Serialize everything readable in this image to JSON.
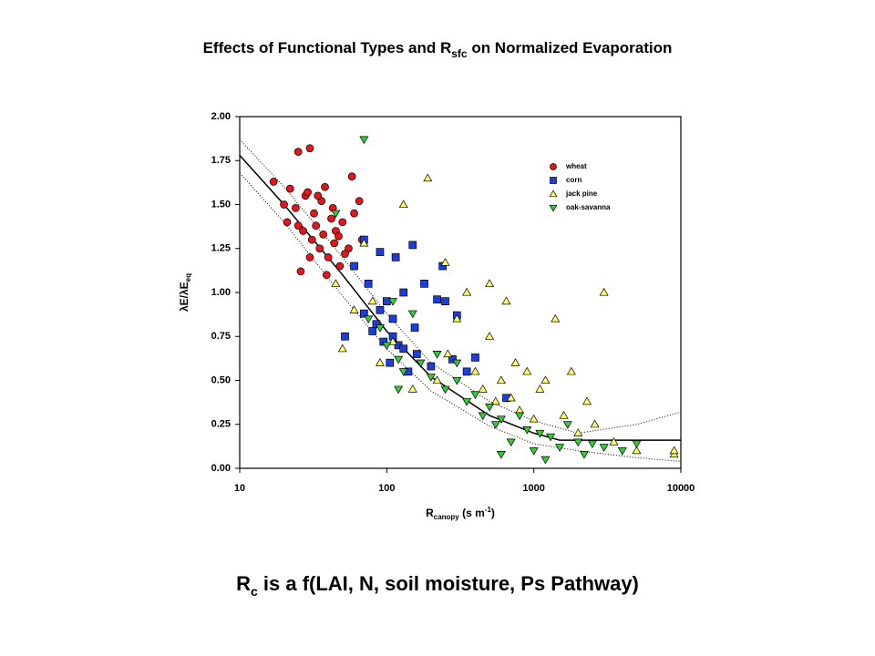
{
  "chart_data": {
    "type": "scatter",
    "title": [
      "Effects of Functional Types and R",
      "sfc",
      " on Normalized Evaporation"
    ],
    "ylabel": [
      "λE/λE",
      "eq"
    ],
    "xlabel": [
      "R",
      "canopy",
      " (s m",
      "-1",
      ")"
    ],
    "footer": [
      "R",
      "c",
      " is a f(LAI, N, soil moisture, Ps Pathway)"
    ],
    "xscale": "log",
    "xlim": [
      10,
      10000
    ],
    "ylim": [
      0,
      2
    ],
    "xticks": [
      10,
      100,
      1000,
      10000
    ],
    "yticks": [
      {
        "value": 0,
        "label": "0.00"
      },
      {
        "value": 0.25,
        "label": "0.25"
      },
      {
        "value": 0.5,
        "label": "0.50"
      },
      {
        "value": 0.75,
        "label": "0.75"
      },
      {
        "value": 1,
        "label": "1.00"
      },
      {
        "value": 1.25,
        "label": "1.25"
      },
      {
        "value": 1.5,
        "label": "1.50"
      },
      {
        "value": 1.75,
        "label": "1.75"
      },
      {
        "value": 2,
        "label": "2.00"
      }
    ],
    "grid": false,
    "legend": "upper right",
    "series": [
      {
        "name": "wheat",
        "color": "#e8141b",
        "marker": "circle",
        "x": [
          17,
          20,
          22,
          24,
          25,
          26,
          28,
          30,
          31,
          32,
          33,
          35,
          36,
          37,
          38,
          40,
          42,
          44,
          45,
          48,
          50,
          55,
          58,
          60,
          65,
          68,
          25,
          30,
          34,
          39,
          43,
          47,
          52,
          21,
          27,
          29
        ],
        "values": [
          1.63,
          1.5,
          1.59,
          1.48,
          1.8,
          1.12,
          1.55,
          1.82,
          1.3,
          1.45,
          1.38,
          1.25,
          1.52,
          1.33,
          1.6,
          1.2,
          1.42,
          1.28,
          1.35,
          1.15,
          1.4,
          1.25,
          1.66,
          1.45,
          1.52,
          1.3,
          1.38,
          1.2,
          1.55,
          1.1,
          1.48,
          1.32,
          1.22,
          1.4,
          1.35,
          1.57
        ]
      },
      {
        "name": "corn",
        "color": "#1d3ede",
        "marker": "square",
        "x": [
          52,
          60,
          70,
          75,
          80,
          85,
          90,
          95,
          100,
          105,
          110,
          115,
          120,
          130,
          140,
          150,
          155,
          160,
          180,
          200,
          220,
          240,
          250,
          280,
          300,
          350,
          400,
          650,
          70,
          90,
          110,
          130
        ],
        "values": [
          0.75,
          1.15,
          0.88,
          1.05,
          0.78,
          0.82,
          1.23,
          0.72,
          0.95,
          0.6,
          0.85,
          1.2,
          0.7,
          1.0,
          0.55,
          1.27,
          0.8,
          0.65,
          1.05,
          0.58,
          0.96,
          1.15,
          0.95,
          0.62,
          0.87,
          0.55,
          0.63,
          0.4,
          1.3,
          0.9,
          0.75,
          0.68
        ]
      },
      {
        "name": "jack pine",
        "color": "#ffff66",
        "marker": "triangle-up",
        "x": [
          45,
          50,
          60,
          70,
          80,
          90,
          110,
          130,
          150,
          190,
          220,
          260,
          300,
          350,
          400,
          450,
          500,
          550,
          600,
          650,
          700,
          750,
          800,
          900,
          1000,
          1100,
          1200,
          1400,
          1600,
          1800,
          2000,
          2300,
          2600,
          3000,
          3500,
          5000,
          9000,
          9000,
          250,
          500
        ],
        "values": [
          1.05,
          0.68,
          0.9,
          1.28,
          0.95,
          0.6,
          0.72,
          1.5,
          0.45,
          1.65,
          0.5,
          0.65,
          0.85,
          1.0,
          0.55,
          0.45,
          0.75,
          0.38,
          0.5,
          0.95,
          0.4,
          0.6,
          0.33,
          0.55,
          0.28,
          0.45,
          0.5,
          0.85,
          0.3,
          0.55,
          0.2,
          0.38,
          0.25,
          1.0,
          0.15,
          0.1,
          0.08,
          0.1,
          1.17,
          1.05
        ]
      },
      {
        "name": "oak-savanna",
        "color": "#33cc33",
        "marker": "triangle-down",
        "x": [
          45,
          70,
          75,
          90,
          100,
          110,
          120,
          130,
          150,
          170,
          200,
          220,
          250,
          300,
          350,
          400,
          450,
          500,
          550,
          600,
          700,
          800,
          900,
          1000,
          1100,
          1200,
          1300,
          1500,
          1700,
          2000,
          2200,
          2500,
          3000,
          4000,
          5000,
          120,
          300,
          600
        ],
        "values": [
          1.45,
          1.87,
          0.85,
          0.8,
          0.7,
          0.95,
          0.62,
          0.55,
          0.88,
          0.6,
          0.52,
          0.65,
          0.45,
          0.5,
          0.38,
          0.42,
          0.3,
          0.35,
          0.25,
          0.28,
          0.15,
          0.3,
          0.22,
          0.1,
          0.2,
          0.05,
          0.18,
          0.12,
          0.25,
          0.15,
          0.08,
          0.14,
          0.12,
          0.1,
          0.14,
          0.45,
          0.6,
          0.08
        ]
      }
    ],
    "fit_lines": [
      {
        "style": "solid",
        "x": [
          10,
          20,
          50,
          100,
          200,
          500,
          1000,
          1500,
          10000
        ],
        "y": [
          1.78,
          1.5,
          1.1,
          0.78,
          0.52,
          0.3,
          0.2,
          0.16,
          0.16
        ]
      },
      {
        "style": "dotted",
        "x": [
          10,
          20,
          50,
          100,
          200,
          500,
          1000,
          2000,
          5000,
          10000
        ],
        "y": [
          1.87,
          1.6,
          1.2,
          0.88,
          0.6,
          0.38,
          0.27,
          0.2,
          0.25,
          0.32
        ]
      },
      {
        "style": "dotted",
        "x": [
          10,
          20,
          50,
          100,
          200,
          500,
          1000,
          2000,
          5000,
          10000
        ],
        "y": [
          1.68,
          1.4,
          0.98,
          0.68,
          0.44,
          0.24,
          0.14,
          0.1,
          0.06,
          0.04
        ]
      }
    ]
  }
}
